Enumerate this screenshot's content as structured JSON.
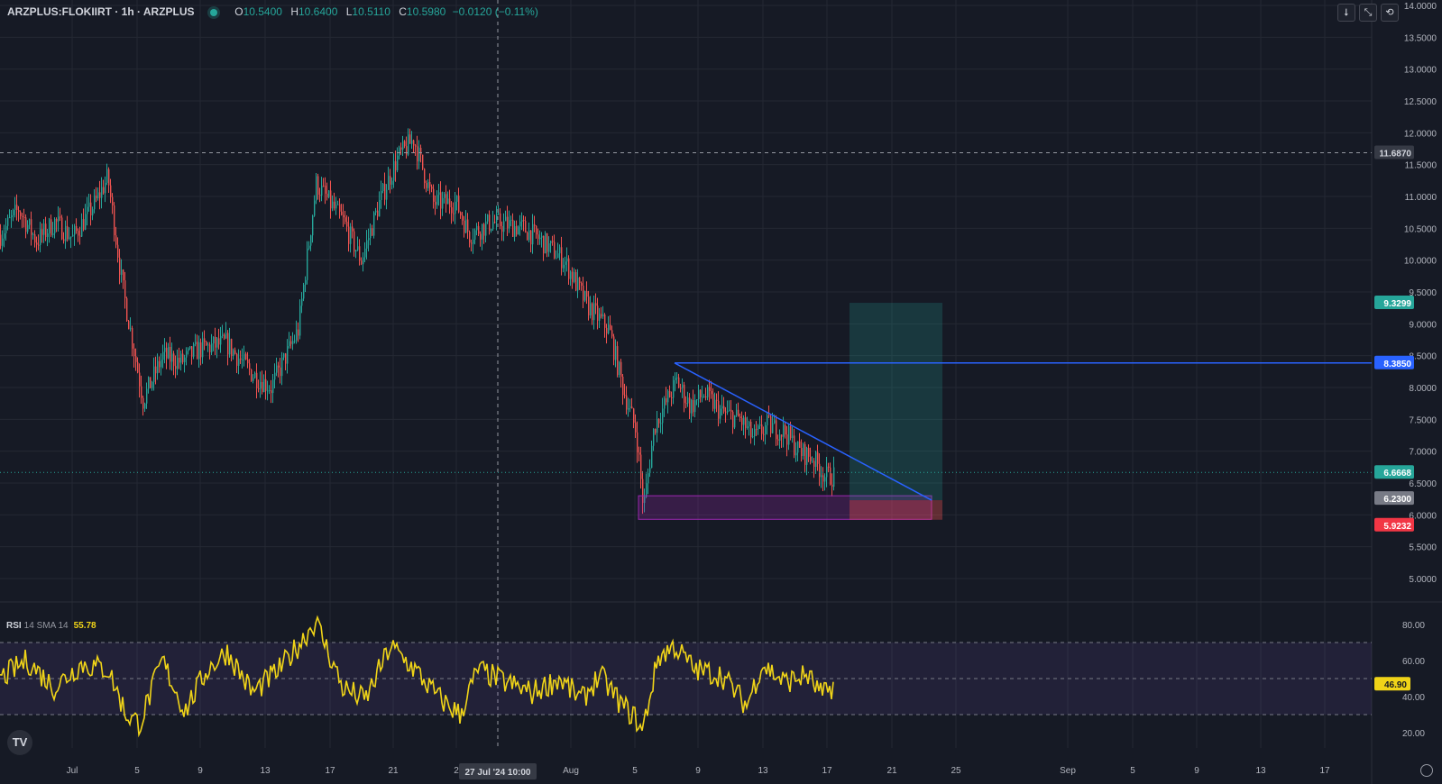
{
  "header": {
    "symbol": "ARZPLUS:FLOKIIRT · 1h · ARZPLUS",
    "open_label": "O",
    "open": "10.5400",
    "high_label": "H",
    "high": "10.6400",
    "low_label": "L",
    "low": "10.5110",
    "close_label": "C",
    "close": "10.5980",
    "change": "−0.0120 (−0.11%)"
  },
  "toolbar": {
    "btn1": "⭣",
    "btn2": "⤡",
    "btn3": "⟲"
  },
  "rsi": {
    "name": "RSI",
    "params": "14 SMA 14",
    "value": "55.78"
  },
  "logo_text": "TV",
  "colors": {
    "background": "#161a25",
    "up": "#26a69a",
    "down": "#ef5350",
    "trendline": "#2962ff",
    "rsi": "#f0d418",
    "zone": "#9c27b0"
  },
  "chart_data": {
    "type": "candlestick",
    "price_axis": {
      "ticks": [
        "14.0000",
        "13.5000",
        "13.0000",
        "12.5000",
        "12.0000",
        "11.5000",
        "11.0000",
        "10.5000",
        "10.0000",
        "9.5000",
        "9.0000",
        "8.5000",
        "8.0000",
        "7.5000",
        "7.0000",
        "6.5000",
        "6.0000",
        "5.5000",
        "5.0000"
      ],
      "range": [
        4.5,
        14.0
      ]
    },
    "time_axis": {
      "ticks": [
        "Jul",
        "5",
        "9",
        "13",
        "17",
        "21",
        "2",
        "Aug",
        "5",
        "9",
        "13",
        "17",
        "21",
        "25",
        "Sep",
        "5",
        "9",
        "13",
        "17"
      ],
      "crosshair_label": "27 Jul '24   10:00"
    },
    "price_labels": [
      {
        "value": "11.6870",
        "style": "crosshair"
      },
      {
        "value": "9.3299",
        "style": "target"
      },
      {
        "value": "8.3850",
        "style": "line"
      },
      {
        "value": "6.6668",
        "style": "last"
      },
      {
        "value": "6.2300",
        "style": "entry"
      },
      {
        "value": "5.9232",
        "style": "stop"
      }
    ],
    "path_anchors": [
      {
        "t": 0,
        "p": 10.4
      },
      {
        "t": 20,
        "p": 10.8
      },
      {
        "t": 40,
        "p": 10.3
      },
      {
        "t": 60,
        "p": 10.6
      },
      {
        "t": 80,
        "p": 10.35
      },
      {
        "t": 105,
        "p": 10.9
      },
      {
        "t": 119,
        "p": 11.3
      },
      {
        "t": 135,
        "p": 9.6
      },
      {
        "t": 158,
        "p": 7.8
      },
      {
        "t": 180,
        "p": 8.5
      },
      {
        "t": 200,
        "p": 8.4
      },
      {
        "t": 220,
        "p": 8.6
      },
      {
        "t": 250,
        "p": 8.7
      },
      {
        "t": 280,
        "p": 8.2
      },
      {
        "t": 300,
        "p": 8.0
      },
      {
        "t": 330,
        "p": 8.9
      },
      {
        "t": 350,
        "p": 11.2
      },
      {
        "t": 380,
        "p": 10.6
      },
      {
        "t": 400,
        "p": 10.0
      },
      {
        "t": 420,
        "p": 10.9
      },
      {
        "t": 440,
        "p": 11.6
      },
      {
        "t": 458,
        "p": 11.9
      },
      {
        "t": 480,
        "p": 10.9
      },
      {
        "t": 505,
        "p": 10.9
      },
      {
        "t": 520,
        "p": 10.4
      },
      {
        "t": 545,
        "p": 10.6
      },
      {
        "t": 580,
        "p": 10.5
      },
      {
        "t": 600,
        "p": 10.3
      },
      {
        "t": 625,
        "p": 10.0
      },
      {
        "t": 650,
        "p": 9.3
      },
      {
        "t": 675,
        "p": 8.9
      },
      {
        "t": 690,
        "p": 8.0
      },
      {
        "t": 705,
        "p": 7.3
      },
      {
        "t": 713,
        "p": 6.1
      },
      {
        "t": 725,
        "p": 7.4
      },
      {
        "t": 750,
        "p": 8.1
      },
      {
        "t": 765,
        "p": 7.7
      },
      {
        "t": 780,
        "p": 7.9
      },
      {
        "t": 800,
        "p": 7.6
      },
      {
        "t": 820,
        "p": 7.5
      },
      {
        "t": 835,
        "p": 7.2
      },
      {
        "t": 850,
        "p": 7.4
      },
      {
        "t": 870,
        "p": 7.3
      },
      {
        "t": 885,
        "p": 7.0
      },
      {
        "t": 900,
        "p": 6.9
      },
      {
        "t": 915,
        "p": 6.6
      },
      {
        "t": 925,
        "p": 6.62
      }
    ],
    "trendline": {
      "start": {
        "t": 748,
        "p": 8.385
      },
      "end": {
        "t": 1033,
        "p": 6.23
      }
    },
    "horizontal_line": {
      "start_t": 748,
      "p": 8.385
    },
    "zone": {
      "t0": 708,
      "t1": 1033,
      "p_top": 6.3,
      "p_bottom": 5.93
    },
    "position": {
      "t0": 942,
      "t1": 1045,
      "entry": 6.23,
      "target": 9.3299,
      "stop": 5.9232
    },
    "rsi_axis": {
      "ticks": [
        "80.00",
        "60.00",
        "40.00",
        "20.00"
      ],
      "range": [
        15,
        90
      ],
      "bands": [
        70,
        50,
        30
      ],
      "last": "46.90"
    },
    "rsi_anchors": [
      {
        "t": 0,
        "v": 50
      },
      {
        "t": 30,
        "v": 60
      },
      {
        "t": 60,
        "v": 45
      },
      {
        "t": 90,
        "v": 58
      },
      {
        "t": 120,
        "v": 55
      },
      {
        "t": 140,
        "v": 30
      },
      {
        "t": 155,
        "v": 25
      },
      {
        "t": 180,
        "v": 60
      },
      {
        "t": 205,
        "v": 32
      },
      {
        "t": 230,
        "v": 55
      },
      {
        "t": 252,
        "v": 65
      },
      {
        "t": 280,
        "v": 42
      },
      {
        "t": 310,
        "v": 55
      },
      {
        "t": 330,
        "v": 68
      },
      {
        "t": 350,
        "v": 82
      },
      {
        "t": 380,
        "v": 45
      },
      {
        "t": 405,
        "v": 38
      },
      {
        "t": 433,
        "v": 68
      },
      {
        "t": 460,
        "v": 55
      },
      {
        "t": 485,
        "v": 40
      },
      {
        "t": 510,
        "v": 30
      },
      {
        "t": 530,
        "v": 55
      },
      {
        "t": 560,
        "v": 48
      },
      {
        "t": 590,
        "v": 42
      },
      {
        "t": 620,
        "v": 50
      },
      {
        "t": 645,
        "v": 38
      },
      {
        "t": 665,
        "v": 52
      },
      {
        "t": 690,
        "v": 35
      },
      {
        "t": 705,
        "v": 28
      },
      {
        "t": 712,
        "v": 20
      },
      {
        "t": 730,
        "v": 62
      },
      {
        "t": 748,
        "v": 68
      },
      {
        "t": 770,
        "v": 55
      },
      {
        "t": 800,
        "v": 52
      },
      {
        "t": 828,
        "v": 35
      },
      {
        "t": 845,
        "v": 58
      },
      {
        "t": 870,
        "v": 48
      },
      {
        "t": 895,
        "v": 52
      },
      {
        "t": 912,
        "v": 40
      },
      {
        "t": 925,
        "v": 47
      }
    ]
  }
}
